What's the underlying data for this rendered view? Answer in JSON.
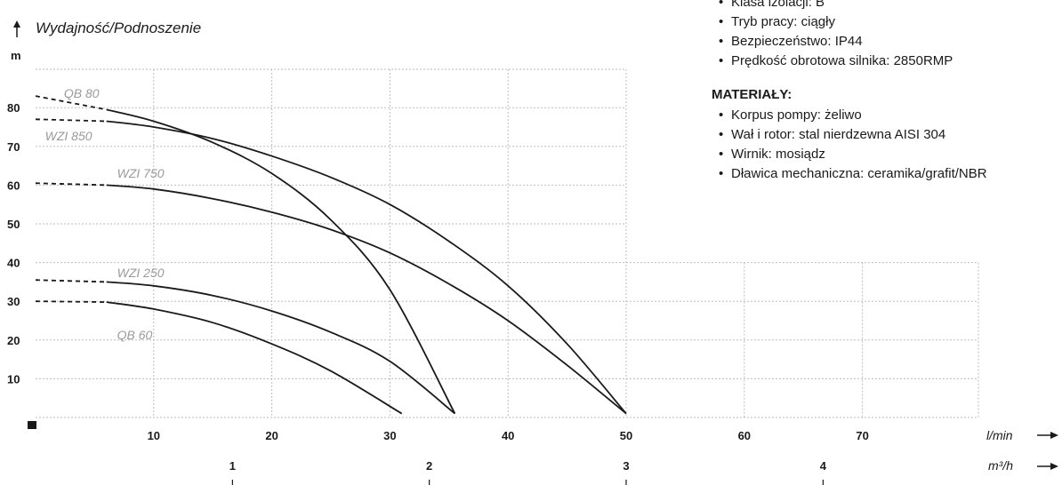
{
  "specs": {
    "items": [
      "Klasa izolacji: B",
      "Tryb pracy: ciągły",
      "Bezpieczeństwo: IP44",
      "Prędkość obrotowa silnika: 2850RMP"
    ],
    "materials_heading": "MATERIAŁY:",
    "materials": [
      "Korpus pompy: żeliwo",
      "Wał i rotor: stal nierdzewna AISI 304",
      "Wirnik: mosiądz",
      "Dławica mechaniczna: ceramika/grafit/NBR"
    ],
    "bullet": "•"
  },
  "chart_data": {
    "type": "line",
    "title": "",
    "ylabel": "Wydajność/Podnoszenie",
    "yunit": "m",
    "xlabel": "l/min",
    "x2label": "m³/h",
    "xlim": [
      0,
      80
    ],
    "ylim": [
      0,
      90
    ],
    "xticks": [
      10,
      20,
      30,
      40,
      50,
      60,
      70
    ],
    "yticks": [
      10,
      20,
      30,
      40,
      50,
      60,
      70,
      80
    ],
    "x2ticks": [
      {
        "label": "1",
        "value": 16.67
      },
      {
        "label": "2",
        "value": 33.33
      },
      {
        "label": "3",
        "value": 50
      },
      {
        "label": "4",
        "value": 66.67
      }
    ],
    "grid": true,
    "series": [
      {
        "name": "QB 80",
        "x": [
          0,
          6,
          10,
          15,
          20,
          25,
          30,
          35.5
        ],
        "y": [
          83,
          79.5,
          76.5,
          71,
          63,
          51,
          33,
          1
        ],
        "color": "#1a1a1a"
      },
      {
        "name": "WZI 850",
        "x": [
          0,
          6,
          10,
          15,
          20,
          25,
          30,
          35,
          40,
          45,
          50
        ],
        "y": [
          77,
          76.5,
          75,
          72,
          67.5,
          62,
          55,
          45.5,
          34,
          19,
          1
        ],
        "color": "#1a1a1a"
      },
      {
        "name": "WZI 750",
        "x": [
          0,
          6,
          10,
          15,
          20,
          25,
          30,
          35,
          40,
          45,
          50
        ],
        "y": [
          60.5,
          60,
          59,
          56.5,
          53,
          48.5,
          42.5,
          34.5,
          25,
          13.5,
          1
        ],
        "color": "#1a1a1a"
      },
      {
        "name": "WZI 250",
        "x": [
          0,
          6,
          10,
          15,
          20,
          25,
          30,
          35.5
        ],
        "y": [
          35.5,
          35,
          34,
          31.5,
          27.5,
          22,
          14.5,
          1
        ],
        "color": "#1a1a1a"
      },
      {
        "name": "QB 60",
        "x": [
          0,
          6,
          10,
          15,
          20,
          25,
          31
        ],
        "y": [
          30,
          29.8,
          28,
          24.5,
          19,
          12,
          1
        ],
        "color": "#1a1a1a"
      }
    ]
  }
}
